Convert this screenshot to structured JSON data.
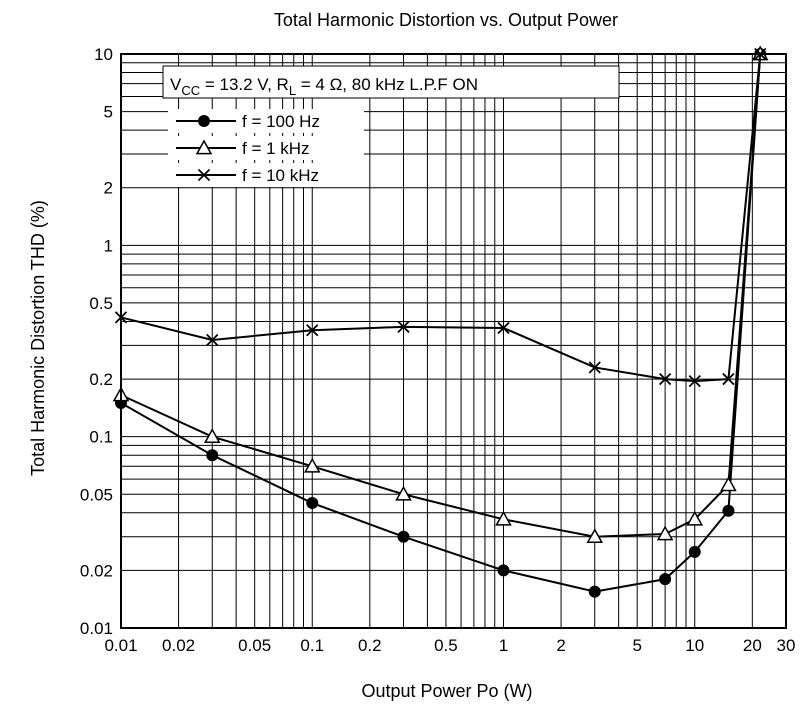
{
  "chart_data": {
    "type": "line",
    "title": "Total Harmonic Distortion vs. Output Power",
    "xlabel": "Output Power  Po  (W)",
    "ylabel": "Total Harmonic Distortion  THD  (%)",
    "x_scale": "log",
    "y_scale": "log",
    "xlim": [
      0.01,
      30
    ],
    "ylim": [
      0.01,
      10
    ],
    "grid": true,
    "legend_position": "top-left",
    "xticks": [
      {
        "value": 0.01,
        "label": "0.01"
      },
      {
        "value": 0.02,
        "label": "0.02"
      },
      {
        "value": 0.05,
        "label": "0.05"
      },
      {
        "value": 0.1,
        "label": "0.1"
      },
      {
        "value": 0.2,
        "label": "0.2"
      },
      {
        "value": 0.5,
        "label": "0.5"
      },
      {
        "value": 1,
        "label": "1"
      },
      {
        "value": 2,
        "label": "2"
      },
      {
        "value": 5,
        "label": "5"
      },
      {
        "value": 10,
        "label": "10"
      },
      {
        "value": 20,
        "label": "20"
      },
      {
        "value": 30,
        "label": "30"
      }
    ],
    "yticks": [
      {
        "value": 0.01,
        "label": "0.01"
      },
      {
        "value": 0.02,
        "label": "0.02"
      },
      {
        "value": 0.05,
        "label": "0.05"
      },
      {
        "value": 0.1,
        "label": "0.1"
      },
      {
        "value": 0.2,
        "label": "0.2"
      },
      {
        "value": 0.5,
        "label": "0.5"
      },
      {
        "value": 1,
        "label": "1"
      },
      {
        "value": 2,
        "label": "2"
      },
      {
        "value": 5,
        "label": "5"
      },
      {
        "value": 10,
        "label": "10"
      }
    ],
    "condition": {
      "vcc_main": "V",
      "vcc_sub": "CC",
      "vcc_value": " = 13.2 V, R",
      "rl_sub": "L",
      "rest": " = 4 Ω, 80 kHz L.P.F ON"
    },
    "series": [
      {
        "name": "f = 100 Hz",
        "marker": "circle",
        "x": [
          0.01,
          0.03,
          0.1,
          0.3,
          1,
          3,
          7,
          10,
          15,
          22
        ],
        "y": [
          0.15,
          0.08,
          0.045,
          0.03,
          0.02,
          0.0155,
          0.018,
          0.025,
          0.041,
          10
        ]
      },
      {
        "name": "f = 1 kHz",
        "marker": "triangle",
        "x": [
          0.01,
          0.03,
          0.1,
          0.3,
          1,
          3,
          7,
          10,
          15,
          22
        ],
        "y": [
          0.165,
          0.1,
          0.07,
          0.05,
          0.037,
          0.03,
          0.031,
          0.037,
          0.056,
          10
        ]
      },
      {
        "name": "f = 10 kHz",
        "marker": "x",
        "x": [
          0.01,
          0.03,
          0.1,
          0.3,
          1,
          3,
          7,
          10,
          15,
          22
        ],
        "y": [
          0.42,
          0.32,
          0.36,
          0.375,
          0.37,
          0.23,
          0.2,
          0.195,
          0.2,
          10
        ]
      }
    ]
  }
}
